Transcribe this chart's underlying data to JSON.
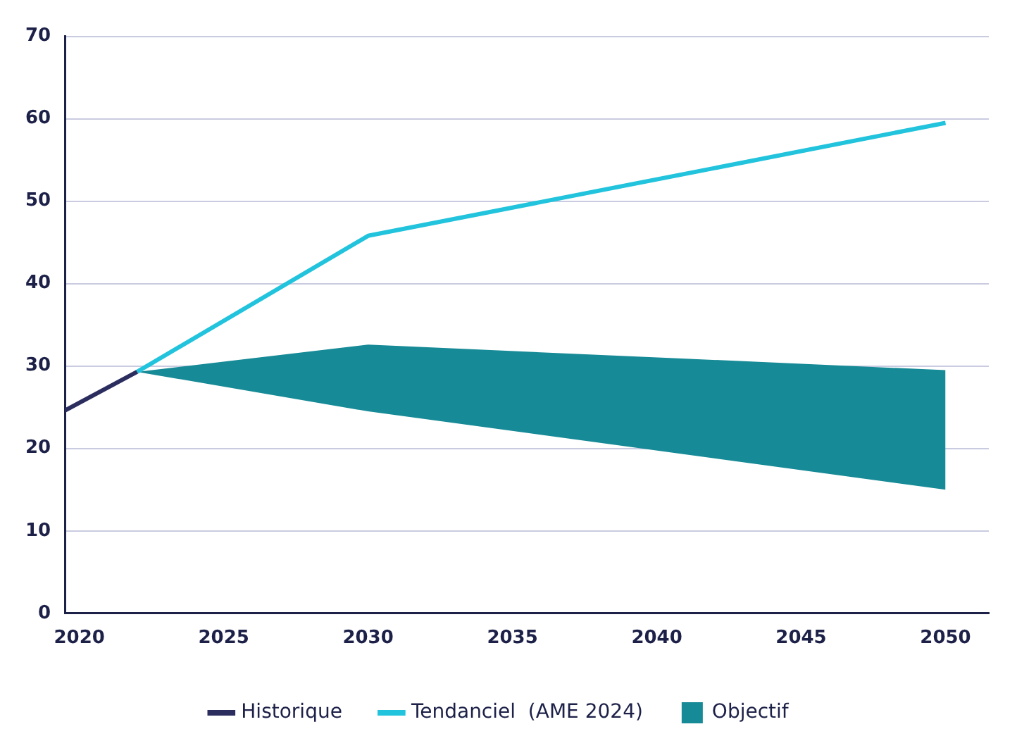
{
  "chart_data": {
    "type": "line",
    "xlim": [
      2019.5,
      2051.5
    ],
    "xticks": [
      2020,
      2025,
      2030,
      2035,
      2040,
      2045,
      2050
    ],
    "ylim": [
      0,
      70
    ],
    "yticks": [
      0,
      10,
      20,
      30,
      40,
      50,
      60,
      70
    ],
    "grid": "y",
    "legend": "bottom",
    "marker": "none",
    "series": [
      {
        "name": "Historique",
        "type": "line",
        "color": "#2b2d5e",
        "x": [
          2019.5,
          2022
        ],
        "values": [
          24.6,
          29.3
        ]
      },
      {
        "name": "Tendanciel  (AME 2024)",
        "type": "line",
        "color": "#22c3dc",
        "x": [
          2022,
          2030,
          2050
        ],
        "values": [
          29.3,
          45.8,
          59.5
        ]
      },
      {
        "name": "Objectif",
        "type": "area",
        "color": "#168a96",
        "x": [
          2022,
          2030,
          2050
        ],
        "values": [
          null,
          null,
          null
        ],
        "lower": [
          29.3,
          24.5,
          15
        ],
        "upper": [
          29.3,
          32.6,
          29.5
        ]
      }
    ]
  }
}
